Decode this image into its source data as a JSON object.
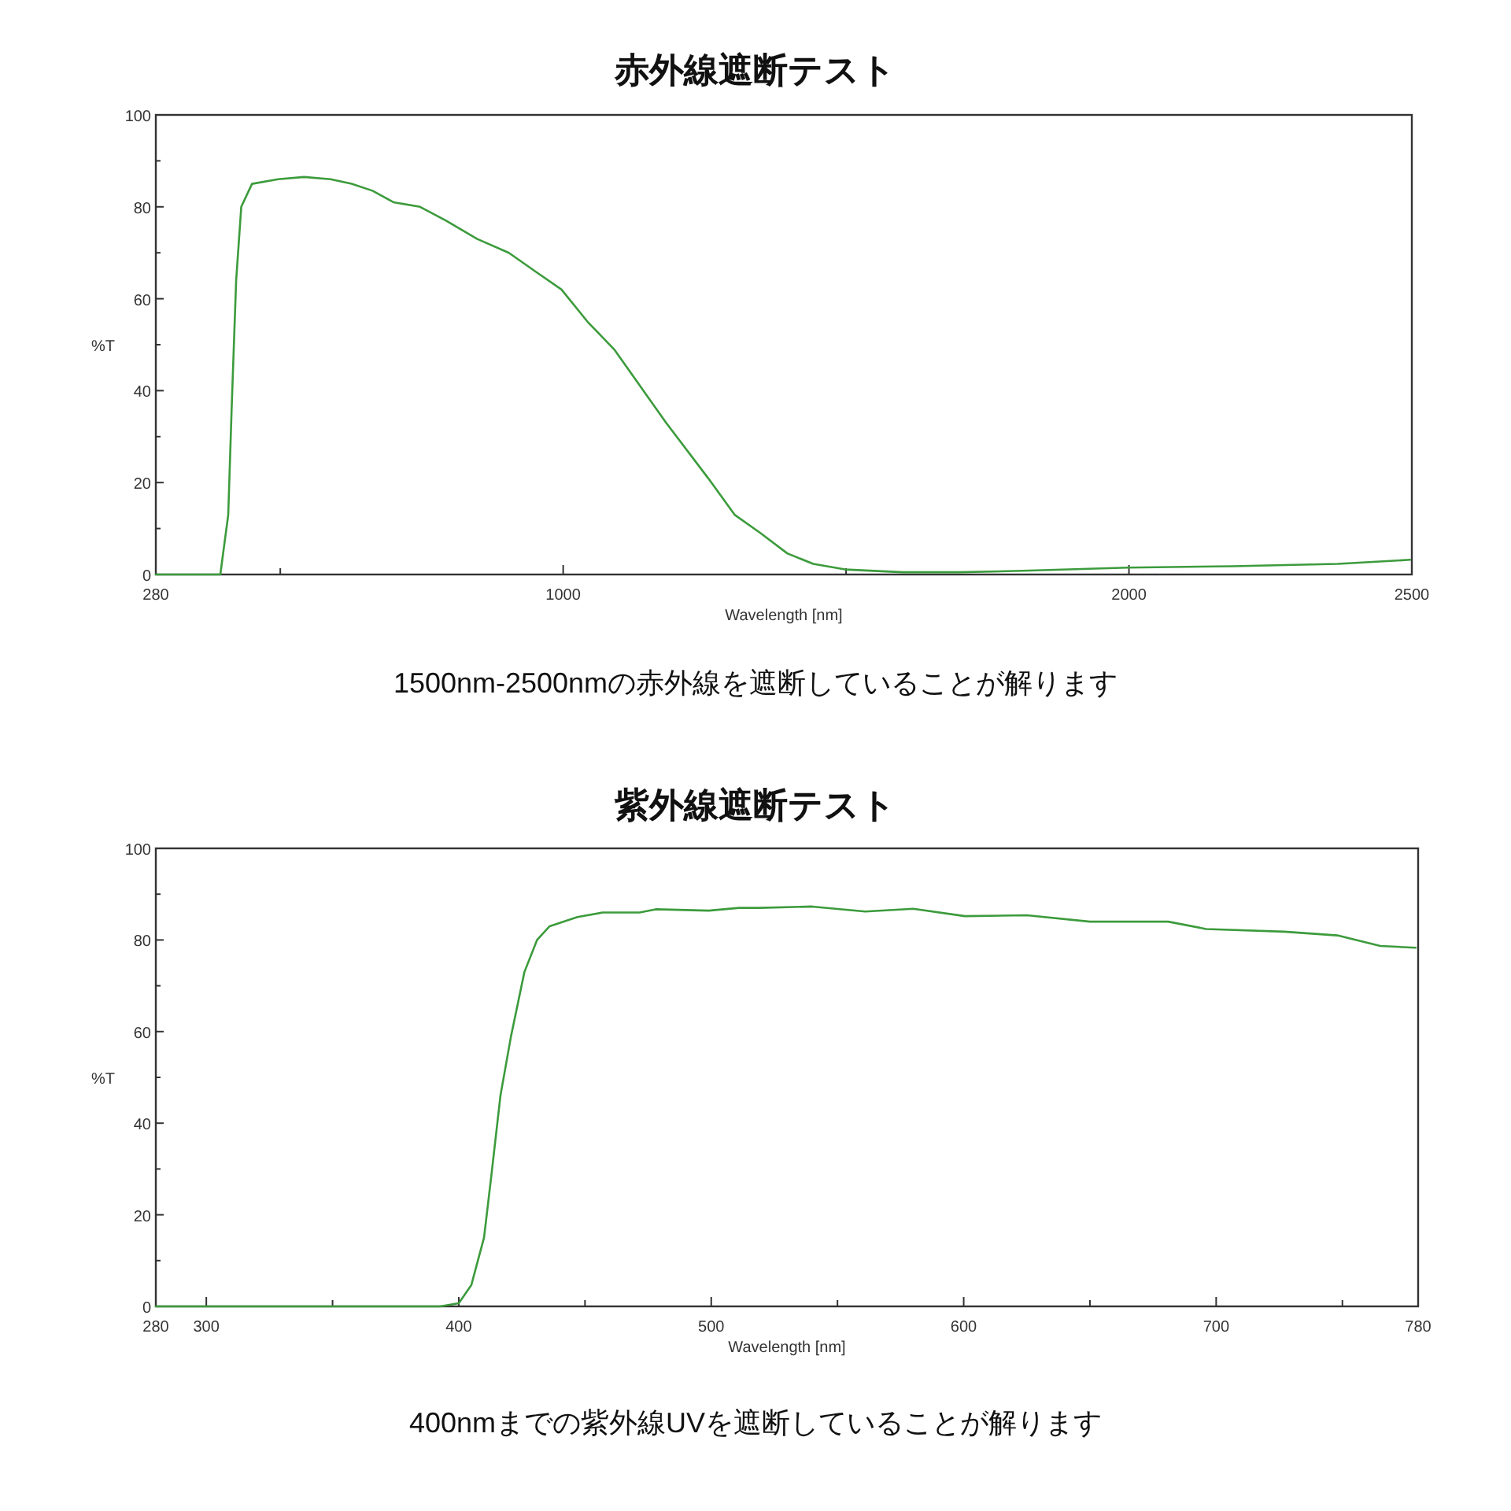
{
  "chart_data": [
    {
      "type": "line",
      "title": "赤外線遮断テスト",
      "xlabel": "Wavelength [nm]",
      "ylabel": "%T",
      "x": [
        280,
        394,
        408,
        414,
        422,
        431,
        450,
        496,
        542,
        589,
        626,
        663,
        700,
        747,
        793,
        848,
        904,
        950,
        997,
        1043,
        1090,
        1136,
        1182,
        1256,
        1303,
        1349,
        1396,
        1442,
        1498,
        1600,
        1700,
        1813,
        1998,
        2183,
        2369,
        2497
      ],
      "series": [
        {
          "color": "#3c9b3c",
          "values": [
            0,
            0,
            13,
            36,
            64,
            80,
            85,
            86,
            86.5,
            86,
            85,
            83.5,
            81,
            80,
            77,
            73,
            70,
            66,
            62,
            55,
            49,
            41,
            33,
            21,
            13,
            9,
            4.6,
            2.3,
            1.1,
            0.5,
            0.5,
            0.8,
            1.5,
            1.8,
            2.3,
            3.2
          ]
        }
      ],
      "xlim": [
        280,
        2500
      ],
      "ylim": [
        0,
        100
      ],
      "xticks": [
        280,
        {
          "value": 500,
          "label": null
        },
        1000,
        {
          "value": 1500,
          "label": null
        },
        2000,
        2500
      ],
      "yticks": [
        0,
        {
          "value": 10,
          "label": null
        },
        20,
        {
          "value": 30,
          "label": null
        },
        40,
        {
          "value": 50,
          "label": null
        },
        60,
        {
          "value": 70,
          "label": null
        },
        80,
        {
          "value": 90,
          "label": null
        },
        100
      ],
      "annotations": [
        "1500nm-2500nmの赤外線を遮断していることが解ります"
      ]
    },
    {
      "type": "line",
      "title": "紫外線遮断テスト",
      "xlabel": "Wavelength [nm]",
      "ylabel": "%T",
      "x": [
        280,
        392.6,
        400,
        405,
        410,
        413,
        416.5,
        420.7,
        426,
        431,
        436,
        447,
        457,
        471.6,
        478,
        499,
        511,
        519,
        540,
        561,
        580,
        600.5,
        625,
        650,
        681,
        696,
        727,
        748,
        765,
        779
      ],
      "series": [
        {
          "color": "#3c9b3c",
          "values": [
            0,
            0,
            0.7,
            4.7,
            15,
            29,
            46,
            59,
            73,
            80,
            83,
            85,
            86,
            86,
            86.7,
            86.4,
            87,
            87,
            87.3,
            86.2,
            86.8,
            85.2,
            85.4,
            84,
            84,
            82.4,
            81.8,
            81,
            78.7,
            78.3
          ]
        }
      ],
      "xlim": [
        280,
        780
      ],
      "ylim": [
        0,
        100
      ],
      "xticks": [
        280,
        300,
        {
          "value": 350,
          "label": null
        },
        400,
        {
          "value": 450,
          "label": null
        },
        500,
        {
          "value": 550,
          "label": null
        },
        600,
        {
          "value": 650,
          "label": null
        },
        700,
        {
          "value": 750,
          "label": null
        },
        780
      ],
      "yticks": [
        0,
        {
          "value": 10,
          "label": null
        },
        20,
        {
          "value": 30,
          "label": null
        },
        40,
        {
          "value": 50,
          "label": null
        },
        60,
        {
          "value": 70,
          "label": null
        },
        80,
        {
          "value": 90,
          "label": null
        },
        100
      ],
      "annotations": [
        "400nmまでの紫外線UVを遮断していることが解ります"
      ]
    }
  ]
}
